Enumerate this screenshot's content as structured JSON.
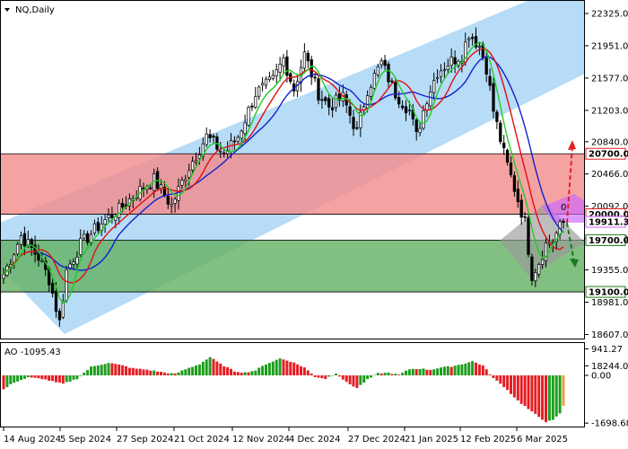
{
  "chart_data": [
    {
      "type": "candlestick",
      "title": "NQ,Daily",
      "ylim": [
        18120,
        22440
      ],
      "y_ticks": [
        22325.0,
        21951.0,
        21577.0,
        21203.0,
        20840.0,
        20466.0,
        20092.0,
        19718.0,
        19355.0,
        18981.0,
        18607.0,
        18244.0
      ],
      "x_ticks": [
        "14 Aug 2024",
        "5 Sep 2024",
        "27 Sep 2024",
        "21 Oct 2024",
        "12 Nov 2024",
        "4 Dec 2024",
        "27 Dec 2024",
        "21 Jan 2025",
        "12 Feb 2025",
        "6 Mar 2025"
      ],
      "close_anchors": [
        [
          0,
          19300
        ],
        [
          5,
          19750
        ],
        [
          10,
          19500
        ],
        [
          13,
          19250
        ],
        [
          16,
          18750
        ],
        [
          18,
          19350
        ],
        [
          22,
          19650
        ],
        [
          28,
          19900
        ],
        [
          33,
          20050
        ],
        [
          38,
          20250
        ],
        [
          43,
          20400
        ],
        [
          48,
          20100
        ],
        [
          53,
          20550
        ],
        [
          58,
          20900
        ],
        [
          63,
          20700
        ],
        [
          67,
          20900
        ],
        [
          72,
          21400
        ],
        [
          77,
          21550
        ],
        [
          80,
          21800
        ],
        [
          83,
          21450
        ],
        [
          86,
          21850
        ],
        [
          90,
          21400
        ],
        [
          93,
          21250
        ],
        [
          97,
          21350
        ],
        [
          101,
          20950
        ],
        [
          104,
          21450
        ],
        [
          108,
          21750
        ],
        [
          112,
          21400
        ],
        [
          116,
          21200
        ],
        [
          118,
          20900
        ],
        [
          121,
          21350
        ],
        [
          124,
          21650
        ],
        [
          127,
          21750
        ],
        [
          131,
          21850
        ],
        [
          133,
          22100
        ],
        [
          136,
          21950
        ],
        [
          138,
          21700
        ],
        [
          140,
          21200
        ],
        [
          143,
          20700
        ],
        [
          146,
          20300
        ],
        [
          149,
          19900
        ],
        [
          151,
          19300
        ],
        [
          153,
          19450
        ],
        [
          155,
          19650
        ],
        [
          157,
          19700
        ],
        [
          159,
          19850
        ],
        [
          160,
          19900
        ]
      ],
      "levels": [
        {
          "value": 20700.0,
          "label": "20700.0",
          "color": "#e31e24"
        },
        {
          "value": 20000.0,
          "label": "20000.0",
          "color": "#e31e24"
        },
        {
          "value": 19911.3,
          "label": "19911.3",
          "color": "#cc66ff"
        },
        {
          "value": 19700.0,
          "label": "19700.0",
          "color": "#1a7a1a"
        },
        {
          "value": 19100.0,
          "label": "19100.0",
          "color": "#1a7a1a"
        }
      ],
      "zones": [
        {
          "from": 20000,
          "to": 20700,
          "color": "#f28b8b"
        },
        {
          "from": 19100,
          "to": 19700,
          "color": "#62b062"
        }
      ],
      "channel_color": "#9fd0f5",
      "ma_colors": {
        "fast": "#22cc22",
        "mid": "#dd1111",
        "slow": "#1122cc"
      },
      "candle_up": "#ffffff",
      "candle_down": "#000000",
      "forecast": {
        "label": "0",
        "up_color": "#e31e24",
        "down_color": "#1a7a1a"
      }
    },
    {
      "type": "bar",
      "title": "AO -1095.43",
      "ylim": [
        -1698.68,
        941.27
      ],
      "y_ticks": [
        941.27,
        0.0,
        -1698.68
      ],
      "up_color": "#1e9e1e",
      "down_color": "#e31e24",
      "last_color": "#e8a040",
      "ao_anchors": [
        [
          0,
          -500
        ],
        [
          3,
          -250
        ],
        [
          7,
          -80
        ],
        [
          11,
          -120
        ],
        [
          15,
          -250
        ],
        [
          17,
          -300
        ],
        [
          21,
          -120
        ],
        [
          25,
          300
        ],
        [
          30,
          450
        ],
        [
          34,
          350
        ],
        [
          37,
          250
        ],
        [
          41,
          200
        ],
        [
          45,
          120
        ],
        [
          49,
          50
        ],
        [
          52,
          220
        ],
        [
          56,
          400
        ],
        [
          59,
          650
        ],
        [
          62,
          400
        ],
        [
          66,
          150
        ],
        [
          69,
          100
        ],
        [
          72,
          180
        ],
        [
          75,
          400
        ],
        [
          79,
          600
        ],
        [
          82,
          500
        ],
        [
          86,
          280
        ],
        [
          89,
          -50
        ],
        [
          92,
          -120
        ],
        [
          95,
          80
        ],
        [
          98,
          -250
        ],
        [
          101,
          -450
        ],
        [
          104,
          -150
        ],
        [
          107,
          70
        ],
        [
          110,
          90
        ],
        [
          113,
          20
        ],
        [
          116,
          220
        ],
        [
          119,
          240
        ],
        [
          122,
          200
        ],
        [
          125,
          280
        ],
        [
          128,
          320
        ],
        [
          131,
          400
        ],
        [
          134,
          500
        ],
        [
          137,
          350
        ],
        [
          140,
          -100
        ],
        [
          143,
          -400
        ],
        [
          147,
          -900
        ],
        [
          151,
          -1300
        ],
        [
          155,
          -1650
        ],
        [
          157,
          -1600
        ],
        [
          159,
          -1350
        ],
        [
          160,
          -1095
        ]
      ]
    }
  ]
}
